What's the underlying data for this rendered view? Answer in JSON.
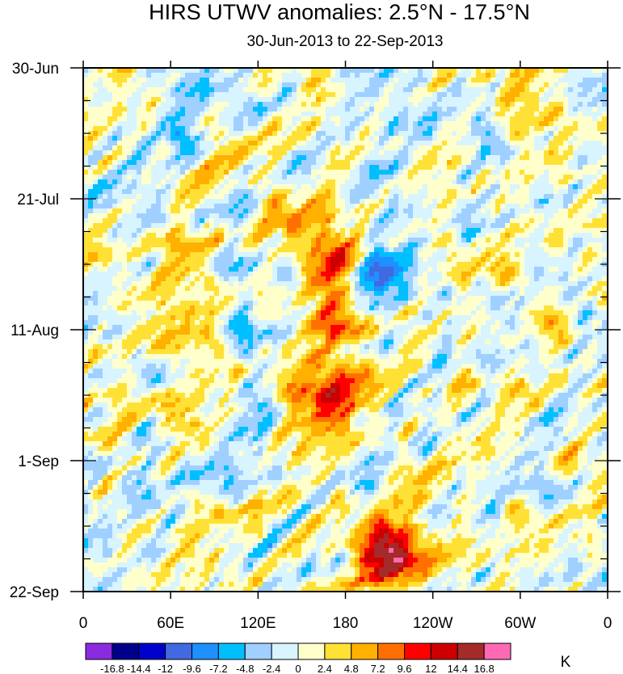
{
  "chart_data": {
    "type": "heatmap",
    "title": "HIRS UTWV anomalies: 2.5°N - 17.5°N",
    "subtitle": "30-Jun-2013 to 22-Sep-2013",
    "x_ticks": [
      "0",
      "60E",
      "120E",
      "180",
      "120W",
      "60W",
      "0"
    ],
    "x_range_deg": [
      0,
      360
    ],
    "y_ticks": [
      "30-Jun",
      "21-Jul",
      "11-Aug",
      "1-Sep",
      "22-Sep"
    ],
    "y_range_days": [
      0,
      84
    ],
    "y_direction": "time increases downward",
    "colorbar_levels": [
      "-16.8",
      "-14.4",
      "-12",
      "-9.6",
      "-7.2",
      "-4.8",
      "-2.4",
      "0",
      "2.4",
      "4.8",
      "7.2",
      "9.6",
      "12",
      "14.4",
      "16.8"
    ],
    "colorbar_colors": [
      "#8a2be2",
      "#00008b",
      "#0000cd",
      "#4169e1",
      "#1e90ff",
      "#00bfff",
      "#a0d0ff",
      "#d8f4ff",
      "#ffffcc",
      "#ffe135",
      "#ffb000",
      "#ff7000",
      "#ff0000",
      "#cc0000",
      "#a52a2a",
      "#ff69b4"
    ],
    "units": "K",
    "notable_features": [
      {
        "label": "positive anomaly band 120E-180, 11-Aug to 1-Sep",
        "lon_center": 165,
        "day_center": 53,
        "value": 9.6
      },
      {
        "label": "strong positive anomaly near 150W, mid-Sep",
        "lon_center": 210,
        "day_center": 78,
        "value": 14.4
      },
      {
        "label": "positive anomaly near 170E, late Jul",
        "lon_center": 170,
        "day_center": 29,
        "value": 9.6
      },
      {
        "label": "positive anomaly near 175E, early Aug",
        "lon_center": 175,
        "day_center": 40,
        "value": 9.6
      },
      {
        "label": "negative anomaly near 160W, early Aug",
        "lon_center": 200,
        "day_center": 33,
        "value": -9.6
      }
    ]
  }
}
